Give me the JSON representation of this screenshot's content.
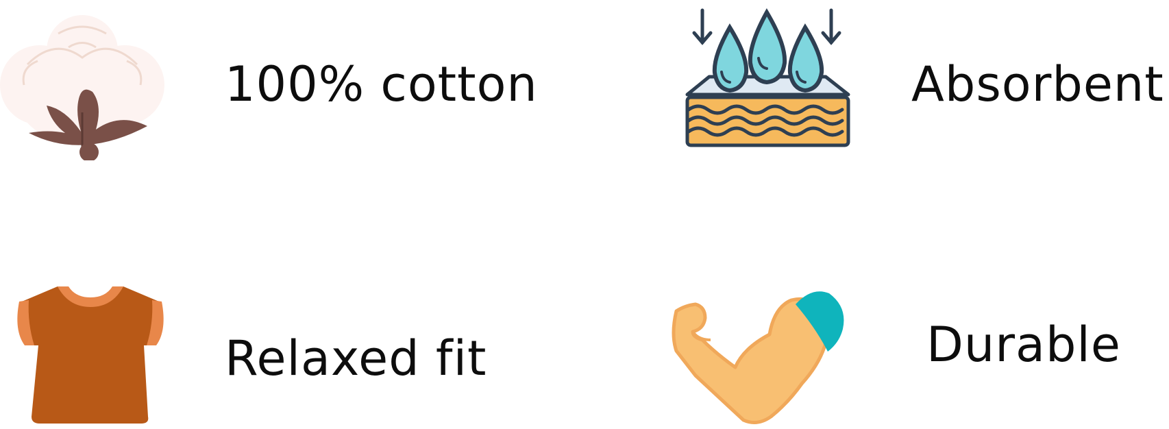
{
  "features": [
    {
      "label": "100% cotton",
      "icon": "cotton-boll-icon"
    },
    {
      "label": "Absorbent",
      "icon": "absorbent-layers-icon"
    },
    {
      "label": "Relaxed fit",
      "icon": "tshirt-icon"
    },
    {
      "label": "Durable",
      "icon": "flexed-arm-icon"
    }
  ],
  "colors": {
    "cotton": "#fdf3f1",
    "cotton_shadow": "#efd9cf",
    "cotton_stem": "#7a5048",
    "water": "#7fd6de",
    "outline": "#2e3f52",
    "layers": "#f6b95c",
    "shirt": "#b85917",
    "shirt_trim": "#e8874a",
    "arm": "#f8bf72",
    "arm_outline": "#f0a85a",
    "sleeve": "#0fb4bc"
  }
}
